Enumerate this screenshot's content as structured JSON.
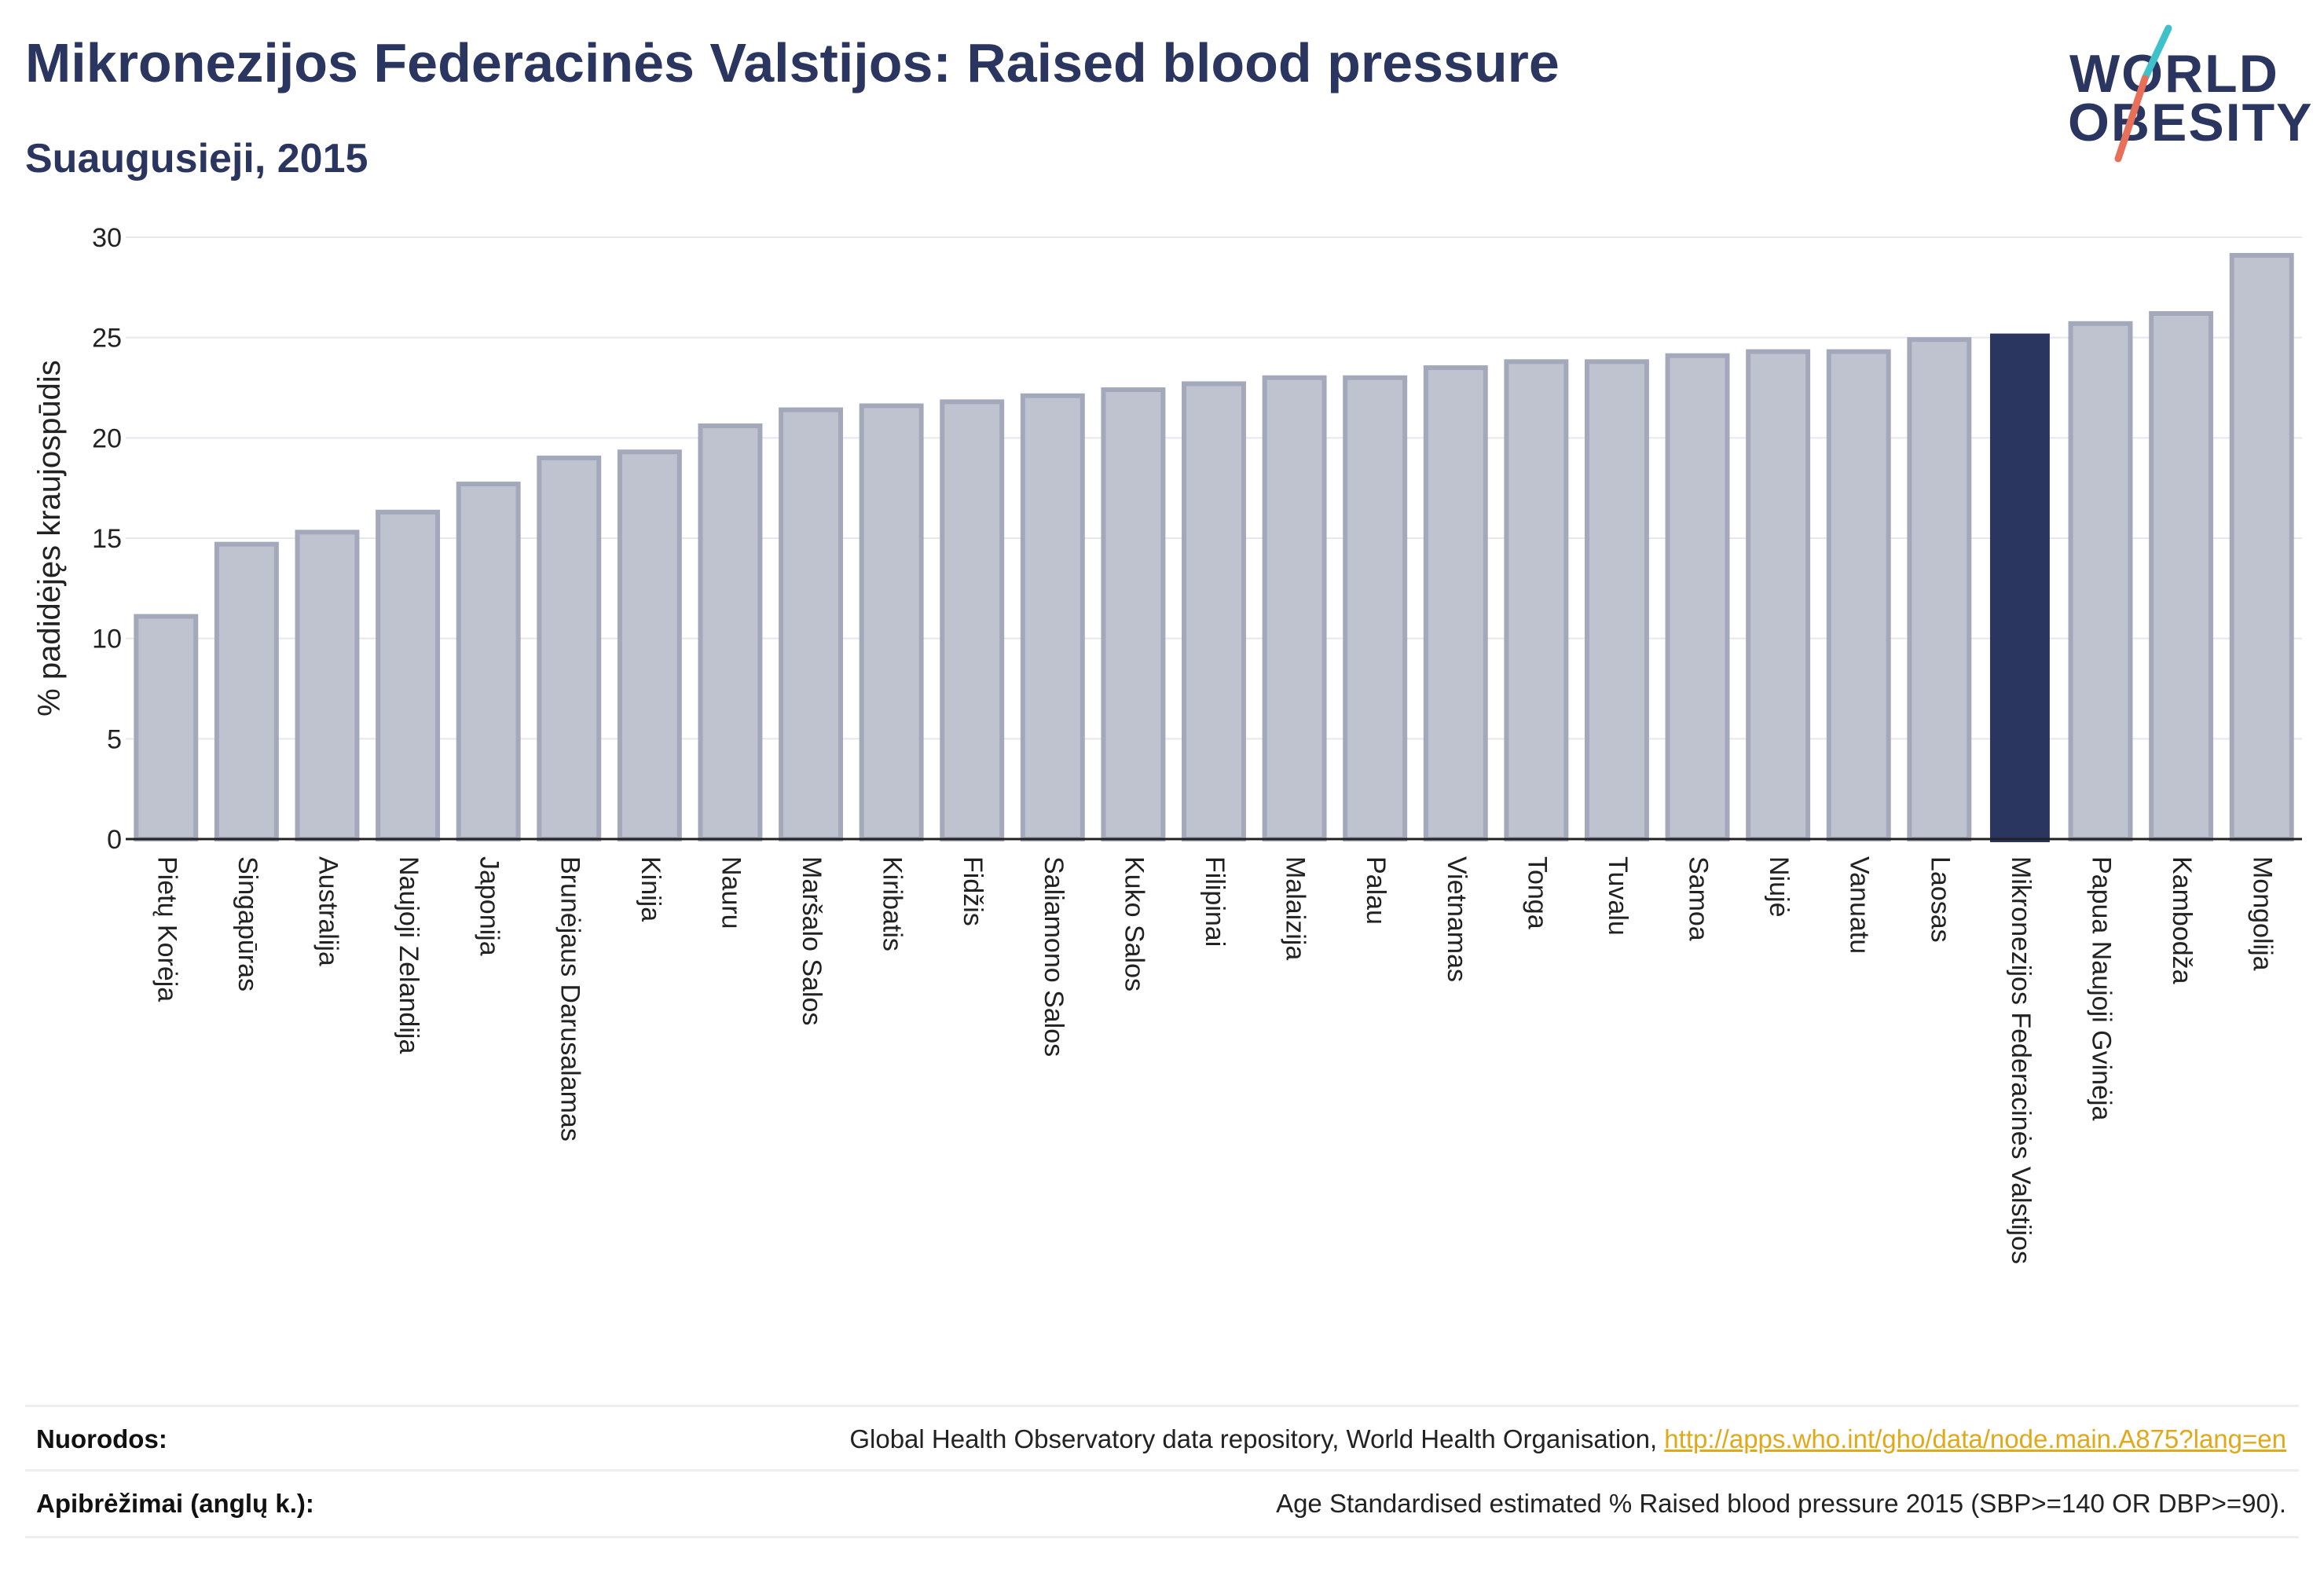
{
  "header": {
    "title": "Mikronezijos Federacinės Valstijos: Raised blood pressure",
    "subtitle": "Suaugusieji, 2015"
  },
  "logo": {
    "line1": "WORLD",
    "line2": "OBESITY",
    "slash_colors": [
      "#3fc1c9",
      "#e8705a"
    ]
  },
  "footer": {
    "references_label": "Nuorodos:",
    "references_text": "Global Health Observatory data repository, World Health Organisation, ",
    "references_link": "http://apps.who.int/gho/data/node.main.A875?lang=en",
    "definitions_label": "Apibrėžimai (anglų k.):",
    "definitions_text": "Age Standardised estimated % Raised blood pressure 2015 (SBP>=140 OR DBP>=90)."
  },
  "colors": {
    "bar_default": "#bfc3d0",
    "bar_default_stroke": "#a3a8bb",
    "bar_highlight": "#2a3560",
    "text": "#2a3560",
    "grid": "#e6e8ee"
  },
  "chart_data": {
    "type": "bar",
    "title": "Mikronezijos Federacinės Valstijos: Raised blood pressure",
    "subtitle": "Suaugusieji, 2015",
    "xlabel": "",
    "ylabel": "% padidėjęs kraujospūdis",
    "ylim": [
      0,
      30
    ],
    "yticks": [
      0,
      5,
      10,
      15,
      20,
      25,
      30
    ],
    "grid": true,
    "highlight": "Mikronezijos Federacinės Valstijos",
    "categories": [
      "Pietų Korėja",
      "Singapūras",
      "Australija",
      "Naujoji Zelandija",
      "Japonija",
      "Brunėjaus Darusalamas",
      "Kinija",
      "Nauru",
      "Maršalo Salos",
      "Kiribatis",
      "Fidžis",
      "Saliamono Salos",
      "Kuko Salos",
      "Filipinai",
      "Malaizija",
      "Palau",
      "Vietnamas",
      "Tonga",
      "Tuvalu",
      "Samoa",
      "Niujė",
      "Vanuatu",
      "Laosas",
      "Mikronezijos Federacinės Valstijos",
      "Papua Naujoji Gvinėja",
      "Kambodža",
      "Mongolija"
    ],
    "values": [
      11.1,
      14.7,
      15.3,
      16.3,
      17.7,
      19.0,
      19.3,
      20.6,
      21.4,
      21.6,
      21.8,
      22.1,
      22.4,
      22.7,
      23.0,
      23.0,
      23.5,
      23.8,
      23.8,
      24.1,
      24.3,
      24.3,
      24.9,
      25.2,
      25.7,
      26.2,
      29.1
    ]
  }
}
